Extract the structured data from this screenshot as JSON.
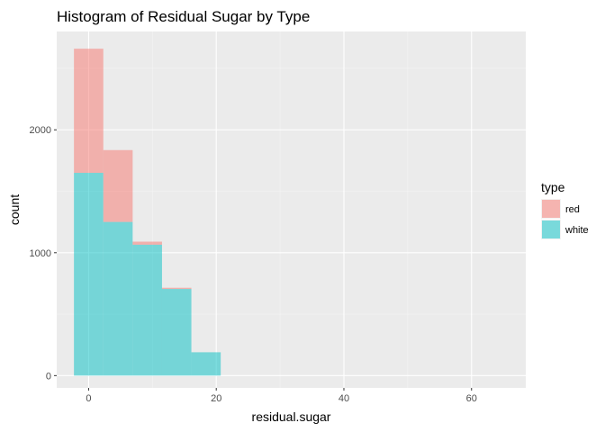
{
  "chart_data": {
    "type": "bar",
    "title": "Histogram of Residual Sugar by Type",
    "xlabel": "residual.sugar",
    "ylabel": "count",
    "xlim": [
      -5,
      68.5
    ],
    "ylim": [
      -100,
      2800
    ],
    "x_ticks": [
      0,
      20,
      40,
      60
    ],
    "y_ticks": [
      0,
      1000,
      2000
    ],
    "grid": true,
    "position": "stack",
    "bin_width": 4.6,
    "bins": [
      {
        "x_start": -2.3,
        "x_end": 2.3
      },
      {
        "x_start": 2.3,
        "x_end": 6.9
      },
      {
        "x_start": 6.9,
        "x_end": 11.5
      },
      {
        "x_start": 11.5,
        "x_end": 16.1
      },
      {
        "x_start": 16.1,
        "x_end": 20.7
      }
    ],
    "series": [
      {
        "name": "white",
        "color": "#00BFC4",
        "values": [
          1650,
          1250,
          1065,
          705,
          190
        ]
      },
      {
        "name": "red",
        "color": "#F8766D",
        "values": [
          1010,
          585,
          25,
          10,
          0
        ]
      }
    ],
    "legend": {
      "title": "type",
      "position": "right",
      "entries": [
        "red",
        "white"
      ]
    }
  }
}
